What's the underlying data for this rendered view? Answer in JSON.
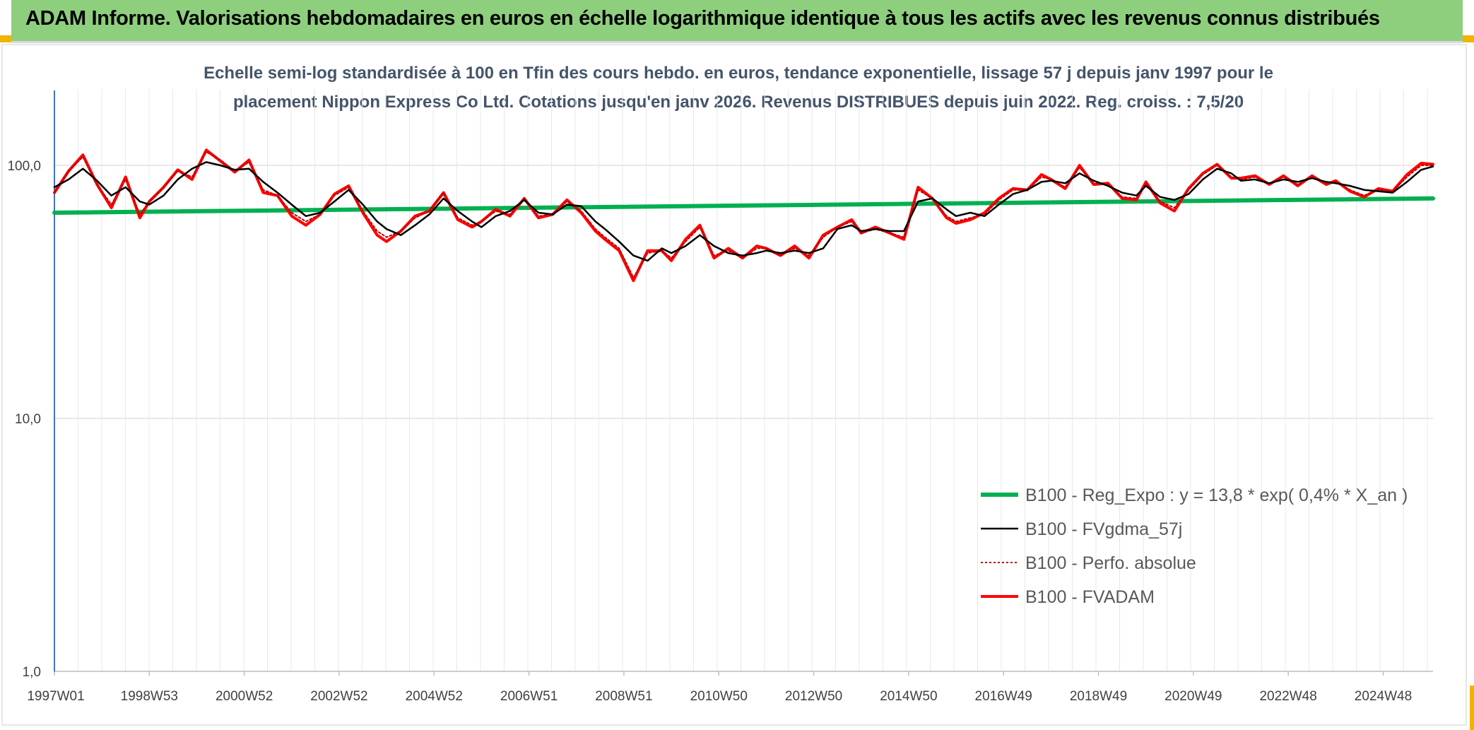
{
  "banner": {
    "title": "ADAM Informe. Valorisations hebdomadaires en euros en échelle logarithmique identique à tous les actifs avec les revenus connus distribués"
  },
  "colors": {
    "banner_bg": "#8ecf7e",
    "corner_accent": "#f0b400",
    "reg": "#00b050",
    "fvgdma": "#000000",
    "perfo": "#c00000",
    "fvadam": "#ff0000",
    "grid": "#d9d9d9",
    "title": "#44546a"
  },
  "chart_data": {
    "type": "line",
    "title": "Echelle semi-log standardisée à 100 en Tfin des cours hebdo. en euros, tendance exponentielle, lissage 57 j depuis janv 1997 pour le placement Nippon Express Co Ltd. Cotations jusqu'en janv 2026. Revenus DISTRIBUES depuis juin 2022. Reg. croiss. : 7,5/20",
    "title_lines": [
      "Echelle semi-log standardisée à 100 en Tfin des cours hebdo. en euros, tendance exponentielle, lissage 57 j depuis janv 1997 pour le",
      "placement Nippon Express Co Ltd. Cotations jusqu'en janv 2026. Revenus DISTRIBUES depuis juin 2022. Reg. croiss. : 7,5/20"
    ],
    "y_scale": "log",
    "ylim": [
      1,
      200
    ],
    "y_ticks": [
      {
        "value": 1,
        "label": "1,0"
      },
      {
        "value": 10,
        "label": "10,0"
      },
      {
        "value": 100,
        "label": "100,0"
      }
    ],
    "xlim": [
      1997.0,
      2026.05
    ],
    "x_ticks": [
      {
        "value": 1997.0,
        "label": "1997W01"
      },
      {
        "value": 1999.0,
        "label": "1998W53"
      },
      {
        "value": 2001.0,
        "label": "2000W52"
      },
      {
        "value": 2003.0,
        "label": "2002W52"
      },
      {
        "value": 2005.0,
        "label": "2004W52"
      },
      {
        "value": 2007.0,
        "label": "2006W51"
      },
      {
        "value": 2009.0,
        "label": "2008W51"
      },
      {
        "value": 2011.0,
        "label": "2010W50"
      },
      {
        "value": 2013.0,
        "label": "2012W50"
      },
      {
        "value": 2015.0,
        "label": "2014W50"
      },
      {
        "value": 2017.0,
        "label": "2016W49"
      },
      {
        "value": 2019.0,
        "label": "2018W49"
      },
      {
        "value": 2021.0,
        "label": "2020W49"
      },
      {
        "value": 2023.0,
        "label": "2022W48"
      },
      {
        "value": 2025.0,
        "label": "2024W48"
      }
    ],
    "grid": true,
    "legend_position": "lower-right",
    "series": [
      {
        "name": "B100 - Reg_Expo : y = 13,8 * exp( 0,4% *  X_an )",
        "style": "thick-green",
        "x": [
          1997.0,
          2026.05
        ],
        "y": [
          65,
          74
        ]
      },
      {
        "name": "B100 - FVgdma_57j",
        "style": "thin-black",
        "x": [
          1997.0,
          1997.3,
          1997.6,
          1997.9,
          1998.2,
          1998.5,
          1998.8,
          1999.0,
          1999.3,
          1999.6,
          1999.9,
          2000.2,
          2000.5,
          2000.8,
          2001.1,
          2001.4,
          2001.7,
          2002.0,
          2002.3,
          2002.6,
          2002.9,
          2003.2,
          2003.5,
          2003.8,
          2004.0,
          2004.3,
          2004.6,
          2004.9,
          2005.2,
          2005.5,
          2005.8,
          2006.0,
          2006.3,
          2006.6,
          2006.9,
          2007.2,
          2007.5,
          2007.8,
          2008.1,
          2008.4,
          2008.6,
          2008.9,
          2009.2,
          2009.5,
          2009.8,
          2010.0,
          2010.3,
          2010.6,
          2010.9,
          2011.2,
          2011.5,
          2011.8,
          2012.0,
          2012.3,
          2012.6,
          2012.9,
          2013.2,
          2013.5,
          2013.8,
          2014.0,
          2014.3,
          2014.6,
          2014.9,
          2015.2,
          2015.5,
          2015.8,
          2016.0,
          2016.3,
          2016.6,
          2016.9,
          2017.2,
          2017.5,
          2017.8,
          2018.0,
          2018.3,
          2018.6,
          2018.9,
          2019.2,
          2019.5,
          2019.8,
          2020.0,
          2020.3,
          2020.6,
          2020.9,
          2021.2,
          2021.5,
          2021.8,
          2022.0,
          2022.3,
          2022.6,
          2022.9,
          2023.2,
          2023.5,
          2023.8,
          2024.0,
          2024.3,
          2024.6,
          2024.9,
          2025.2,
          2025.5,
          2025.8,
          2026.05
        ],
        "y": [
          82,
          88,
          97,
          87,
          76,
          82,
          72,
          70,
          76,
          88,
          97,
          103,
          100,
          96,
          97,
          86,
          78,
          70,
          63,
          65,
          72,
          80,
          70,
          60,
          56,
          53,
          58,
          64,
          74,
          66,
          60,
          57,
          63,
          66,
          73,
          65,
          64,
          70,
          69,
          60,
          56,
          50,
          44,
          42,
          47,
          45,
          48,
          53,
          48,
          45,
          44,
          45,
          46,
          45,
          46,
          45,
          47,
          56,
          58,
          55,
          56,
          55,
          55,
          72,
          74,
          67,
          63,
          65,
          63,
          70,
          77,
          80,
          86,
          87,
          85,
          93,
          87,
          83,
          78,
          76,
          83,
          75,
          73,
          77,
          88,
          97,
          93,
          87,
          88,
          85,
          88,
          86,
          89,
          86,
          85,
          83,
          80,
          79,
          78,
          86,
          96,
          99
        ]
      },
      {
        "name": "B100 - Perfo. absolue",
        "style": "dotted-red",
        "x": [
          1997.0,
          1997.3,
          1997.6,
          1997.9,
          1998.2,
          1998.5,
          1998.8,
          1999.0,
          1999.3,
          1999.6,
          1999.9,
          2000.2,
          2000.5,
          2000.8,
          2001.1,
          2001.4,
          2001.7,
          2002.0,
          2002.3,
          2002.6,
          2002.9,
          2003.2,
          2003.5,
          2003.8,
          2004.0,
          2004.3,
          2004.6,
          2004.9,
          2005.2,
          2005.5,
          2005.8,
          2006.0,
          2006.3,
          2006.6,
          2006.9,
          2007.2,
          2007.5,
          2007.8,
          2008.1,
          2008.4,
          2008.6,
          2008.9,
          2009.2,
          2009.5,
          2009.8,
          2010.0,
          2010.3,
          2010.6,
          2010.9,
          2011.2,
          2011.5,
          2011.8,
          2012.0,
          2012.3,
          2012.6,
          2012.9,
          2013.2,
          2013.5,
          2013.8,
          2014.0,
          2014.3,
          2014.6,
          2014.9,
          2015.2,
          2015.5,
          2015.8,
          2016.0,
          2016.3,
          2016.6,
          2016.9,
          2017.2,
          2017.5,
          2017.8,
          2018.0,
          2018.3,
          2018.6,
          2018.9,
          2019.2,
          2019.5,
          2019.8,
          2020.0,
          2020.3,
          2020.6,
          2020.9,
          2021.2,
          2021.5,
          2021.8,
          2022.0,
          2022.3,
          2022.6,
          2022.9,
          2023.2,
          2023.5,
          2023.8,
          2024.0,
          2024.3,
          2024.6,
          2024.9,
          2025.2,
          2025.5,
          2025.8,
          2026.05
        ],
        "y": [
          78,
          95,
          108,
          84,
          70,
          88,
          64,
          72,
          82,
          95,
          90,
          113,
          105,
          95,
          103,
          80,
          76,
          65,
          60,
          64,
          76,
          82,
          66,
          55,
          52,
          55,
          62,
          66,
          78,
          62,
          58,
          60,
          66,
          64,
          74,
          63,
          64,
          72,
          66,
          56,
          52,
          47,
          36,
          45,
          46,
          43,
          50,
          57,
          44,
          46,
          43,
          47,
          47,
          44,
          47,
          44,
          52,
          57,
          60,
          54,
          56,
          54,
          52,
          80,
          74,
          63,
          60,
          62,
          64,
          73,
          80,
          80,
          90,
          88,
          82,
          98,
          85,
          84,
          75,
          74,
          85,
          72,
          68,
          80,
          92,
          100,
          90,
          88,
          90,
          85,
          90,
          84,
          90,
          85,
          86,
          80,
          76,
          80,
          79,
          90,
          100,
          100
        ]
      },
      {
        "name": "B100 - FVADAM",
        "style": "thick-red",
        "x": [
          1997.0,
          1997.3,
          1997.6,
          1997.9,
          1998.2,
          1998.5,
          1998.8,
          1999.0,
          1999.3,
          1999.6,
          1999.9,
          2000.2,
          2000.5,
          2000.8,
          2001.1,
          2001.4,
          2001.7,
          2002.0,
          2002.3,
          2002.6,
          2002.9,
          2003.2,
          2003.5,
          2003.8,
          2004.0,
          2004.3,
          2004.6,
          2004.9,
          2005.2,
          2005.5,
          2005.8,
          2006.0,
          2006.3,
          2006.6,
          2006.9,
          2007.2,
          2007.5,
          2007.8,
          2008.1,
          2008.4,
          2008.6,
          2008.9,
          2009.2,
          2009.5,
          2009.8,
          2010.0,
          2010.3,
          2010.6,
          2010.9,
          2011.2,
          2011.5,
          2011.8,
          2012.0,
          2012.3,
          2012.6,
          2012.9,
          2013.2,
          2013.5,
          2013.8,
          2014.0,
          2014.3,
          2014.6,
          2014.9,
          2015.2,
          2015.5,
          2015.8,
          2016.0,
          2016.3,
          2016.6,
          2016.9,
          2017.2,
          2017.5,
          2017.8,
          2018.0,
          2018.3,
          2018.6,
          2018.9,
          2019.2,
          2019.5,
          2019.8,
          2020.0,
          2020.3,
          2020.6,
          2020.9,
          2021.2,
          2021.5,
          2021.8,
          2022.0,
          2022.3,
          2022.6,
          2022.9,
          2023.2,
          2023.5,
          2023.8,
          2024.0,
          2024.3,
          2024.6,
          2024.9,
          2025.2,
          2025.5,
          2025.8,
          2026.05
        ],
        "y": [
          78,
          95,
          110,
          84,
          68,
          90,
          62,
          72,
          82,
          96,
          88,
          115,
          104,
          94,
          105,
          78,
          76,
          63,
          58,
          64,
          77,
          83,
          65,
          53,
          50,
          55,
          63,
          66,
          78,
          61,
          57,
          60,
          67,
          63,
          74,
          62,
          64,
          73,
          65,
          55,
          51,
          46,
          35,
          46,
          46,
          42,
          51,
          58,
          43,
          47,
          43,
          48,
          47,
          44,
          48,
          43,
          53,
          57,
          61,
          54,
          57,
          54,
          51,
          82,
          74,
          62,
          59,
          61,
          65,
          74,
          81,
          80,
          92,
          88,
          81,
          100,
          84,
          85,
          74,
          73,
          86,
          71,
          66,
          81,
          93,
          101,
          89,
          89,
          91,
          84,
          91,
          83,
          91,
          84,
          87,
          79,
          75,
          81,
          79,
          92,
          102,
          101
        ]
      }
    ]
  }
}
